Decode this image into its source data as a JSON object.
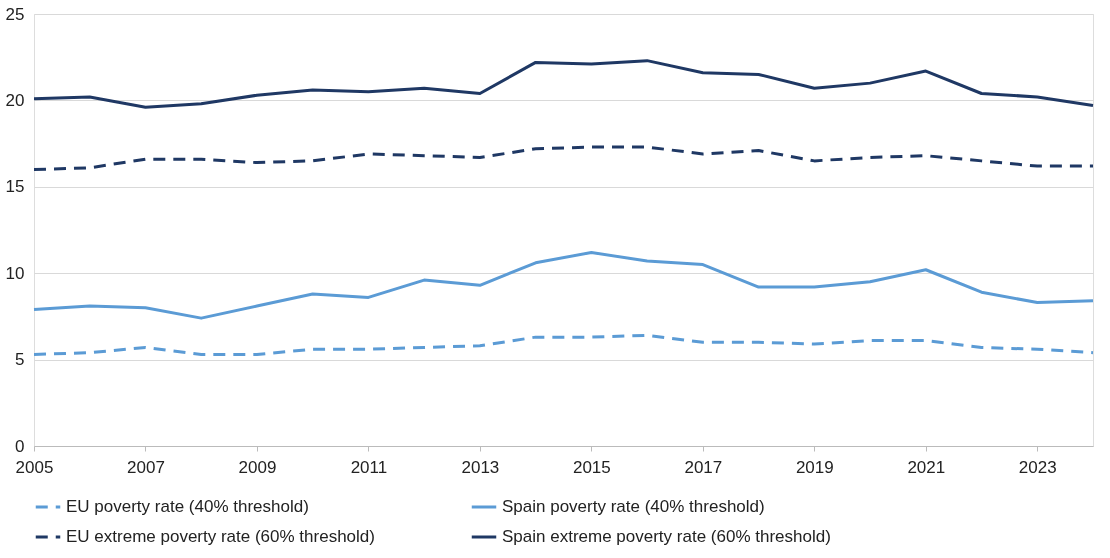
{
  "chart_data": {
    "type": "line",
    "x": [
      2005,
      2006,
      2007,
      2008,
      2009,
      2010,
      2011,
      2012,
      2013,
      2014,
      2015,
      2016,
      2017,
      2018,
      2019,
      2020,
      2021,
      2022,
      2023,
      2024
    ],
    "series": [
      {
        "name": "EU poverty rate (40% threshold)",
        "color": "#5b9bd5",
        "line_style": "dashed",
        "values": [
          5.3,
          5.4,
          5.7,
          5.3,
          5.3,
          5.6,
          5.6,
          5.7,
          5.8,
          6.3,
          6.3,
          6.4,
          6.0,
          6.0,
          5.9,
          6.1,
          6.1,
          5.7,
          5.6,
          5.4
        ]
      },
      {
        "name": "Spain poverty rate (40% threshold)",
        "color": "#5b9bd5",
        "line_style": "solid",
        "values": [
          7.9,
          8.1,
          8.0,
          7.4,
          8.1,
          8.8,
          8.6,
          9.6,
          9.3,
          10.6,
          11.2,
          10.7,
          10.5,
          9.2,
          9.2,
          9.5,
          10.2,
          8.9,
          8.3,
          8.4
        ]
      },
      {
        "name": "EU extreme poverty rate (60% threshold)",
        "color": "#1f3864",
        "line_style": "dashed",
        "values": [
          16.0,
          16.1,
          16.6,
          16.6,
          16.4,
          16.5,
          16.9,
          16.8,
          16.7,
          17.2,
          17.3,
          17.3,
          16.9,
          17.1,
          16.5,
          16.7,
          16.8,
          16.5,
          16.2,
          16.2
        ]
      },
      {
        "name": "Spain extreme poverty rate (60% threshold)",
        "color": "#1f3864",
        "line_style": "solid",
        "values": [
          20.1,
          20.2,
          19.6,
          19.8,
          20.3,
          20.6,
          20.5,
          20.7,
          20.4,
          22.2,
          22.1,
          22.3,
          21.6,
          21.5,
          20.7,
          21.0,
          21.7,
          20.4,
          20.2,
          19.7
        ]
      }
    ],
    "xlim": [
      2005,
      2024
    ],
    "xticks": [
      2005,
      2007,
      2009,
      2011,
      2013,
      2015,
      2017,
      2019,
      2021,
      2023
    ],
    "ylim": [
      0,
      25
    ],
    "yticks": [
      0,
      5,
      10,
      15,
      20,
      25
    ],
    "grid": "y",
    "legend": "bottom",
    "marker": "none"
  }
}
